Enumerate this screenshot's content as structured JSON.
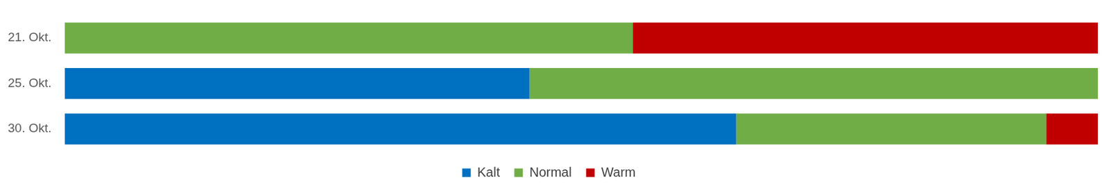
{
  "chart_data": {
    "type": "bar",
    "orientation": "horizontal",
    "stacked": true,
    "categories": [
      "21. Okt.",
      "25. Okt.",
      "30. Okt."
    ],
    "series": [
      {
        "name": "Kalt",
        "color": "#0070c0",
        "values": [
          0,
          45,
          65
        ]
      },
      {
        "name": "Normal",
        "color": "#70ad47",
        "values": [
          55,
          55,
          30
        ]
      },
      {
        "name": "Warm",
        "color": "#c00000",
        "values": [
          45,
          0,
          5
        ]
      }
    ],
    "xlim": [
      0,
      100
    ],
    "grid": false,
    "legend": "bottom",
    "tick_labels": "y"
  }
}
